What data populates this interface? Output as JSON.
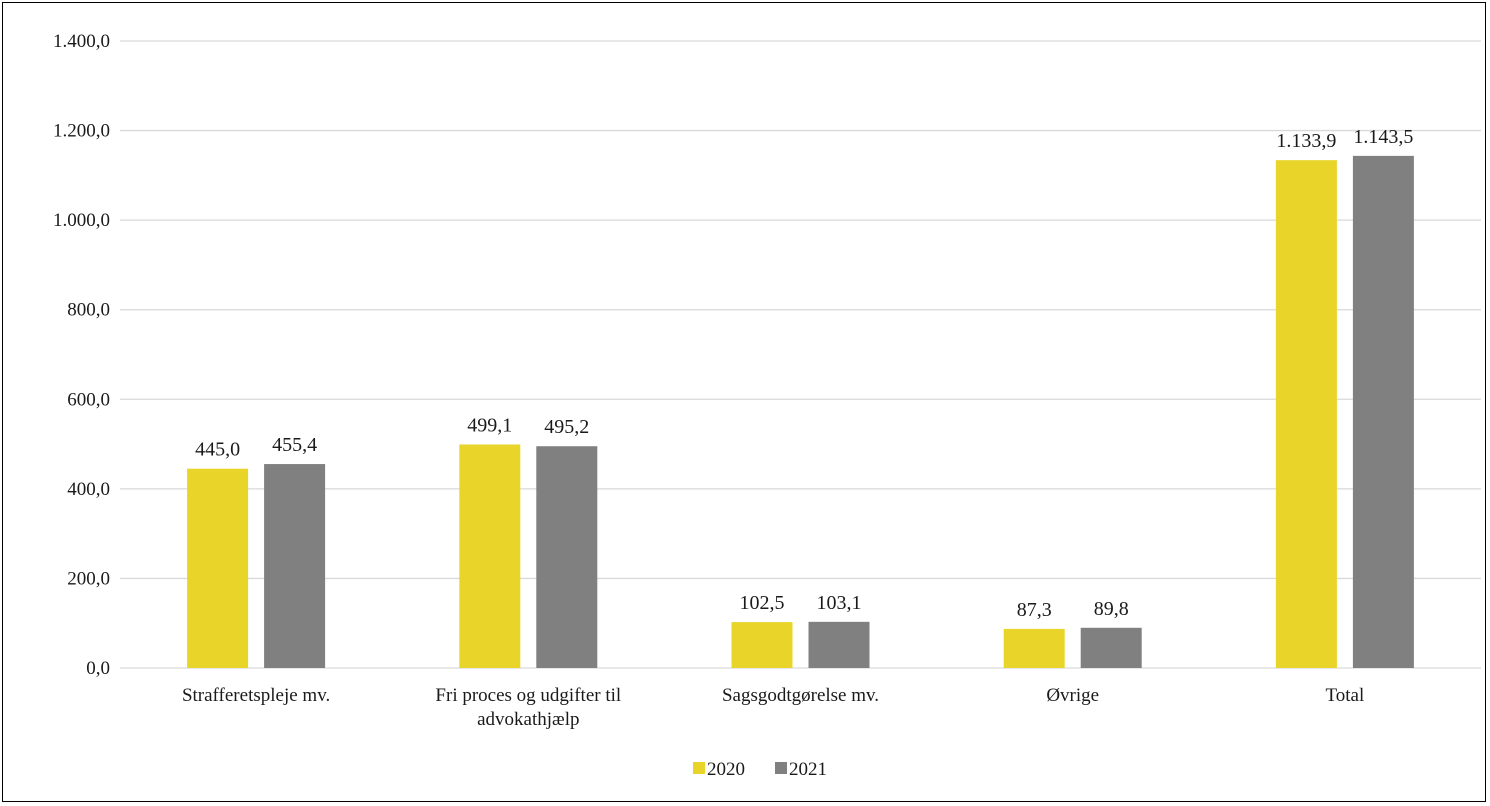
{
  "chart_data": {
    "type": "bar",
    "title": "",
    "xlabel": "",
    "ylabel": "",
    "ylim": [
      0,
      1400
    ],
    "y_ticks": [
      "0,0",
      "200,0",
      "400,0",
      "600,0",
      "800,0",
      "1.000,0",
      "1.200,0",
      "1.400,0"
    ],
    "grid": true,
    "legend_position": "bottom",
    "categories": [
      [
        "Strafferetspleje mv."
      ],
      [
        "Fri proces og udgifter til",
        "advokathjælp"
      ],
      [
        "Sagsgodtgørelse mv."
      ],
      [
        "Øvrige"
      ],
      [
        "Total"
      ]
    ],
    "series": [
      {
        "name": "2020",
        "color": "#e9d52a",
        "values": [
          445.0,
          499.1,
          102.5,
          87.3,
          1133.9
        ],
        "labels": [
          "445,0",
          "499,1",
          "102,5",
          "87,3",
          "1.133,9"
        ]
      },
      {
        "name": "2021",
        "color": "#808080",
        "values": [
          455.4,
          495.2,
          103.1,
          89.8,
          1143.5
        ],
        "labels": [
          "455,4",
          "495,2",
          "103,1",
          "89,8",
          "1.143,5"
        ]
      }
    ]
  }
}
